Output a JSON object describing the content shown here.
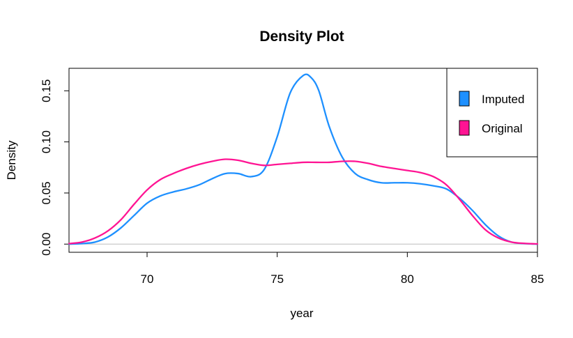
{
  "chart_data": {
    "type": "line",
    "title": "Density Plot",
    "xlabel": "year",
    "ylabel": "Density",
    "xlim": [
      67,
      85
    ],
    "ylim": [
      -0.008,
      0.172
    ],
    "xticks": [
      70,
      75,
      80,
      85
    ],
    "yticks": [
      0.0,
      0.05,
      0.1,
      0.15
    ],
    "ytick_labels": [
      "0.00",
      "0.05",
      "0.10",
      "0.15"
    ],
    "grid": false,
    "zero_line": true,
    "legend": {
      "position": "top-right",
      "entries": [
        "Imputed",
        "Original"
      ]
    },
    "series": [
      {
        "name": "Imputed",
        "color": "#1E90FF",
        "x": [
          67.0,
          67.5,
          68.0,
          68.5,
          69.0,
          69.5,
          70.0,
          70.5,
          71.0,
          71.5,
          72.0,
          72.5,
          73.0,
          73.5,
          74.0,
          74.5,
          75.0,
          75.5,
          76.0,
          76.3,
          76.6,
          77.0,
          77.5,
          78.0,
          78.5,
          79.0,
          79.5,
          80.0,
          80.5,
          81.0,
          81.5,
          82.0,
          82.5,
          83.0,
          83.5,
          84.0,
          84.5,
          85.0
        ],
        "y": [
          0.0,
          0.0005,
          0.002,
          0.007,
          0.016,
          0.028,
          0.04,
          0.047,
          0.051,
          0.054,
          0.058,
          0.064,
          0.069,
          0.069,
          0.066,
          0.073,
          0.105,
          0.148,
          0.165,
          0.163,
          0.15,
          0.115,
          0.085,
          0.069,
          0.063,
          0.06,
          0.06,
          0.06,
          0.059,
          0.057,
          0.054,
          0.045,
          0.033,
          0.019,
          0.008,
          0.002,
          0.0005,
          0.0
        ]
      },
      {
        "name": "Original",
        "color": "#FF1493",
        "x": [
          67.0,
          67.5,
          68.0,
          68.5,
          69.0,
          69.5,
          70.0,
          70.5,
          71.0,
          71.5,
          72.0,
          72.5,
          73.0,
          73.5,
          74.0,
          74.5,
          75.0,
          75.5,
          76.0,
          76.5,
          77.0,
          77.5,
          78.0,
          78.5,
          79.0,
          79.5,
          80.0,
          80.5,
          81.0,
          81.5,
          82.0,
          82.5,
          83.0,
          83.5,
          84.0,
          84.5,
          85.0
        ],
        "y": [
          0.0005,
          0.002,
          0.006,
          0.013,
          0.024,
          0.039,
          0.053,
          0.063,
          0.069,
          0.074,
          0.078,
          0.081,
          0.083,
          0.082,
          0.079,
          0.077,
          0.078,
          0.079,
          0.08,
          0.08,
          0.08,
          0.081,
          0.081,
          0.079,
          0.076,
          0.074,
          0.072,
          0.07,
          0.066,
          0.058,
          0.044,
          0.028,
          0.014,
          0.006,
          0.002,
          0.0007,
          0.0002
        ]
      }
    ]
  }
}
